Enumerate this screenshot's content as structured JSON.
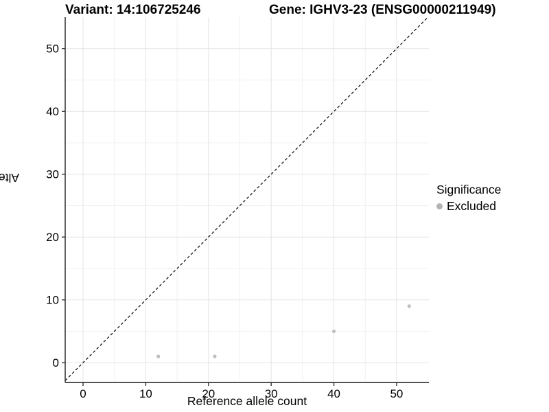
{
  "titles": {
    "variant": "Variant: 14:106725246",
    "gene": "Gene: IGHV3-23 (ENSG00000211949)"
  },
  "legend": {
    "title": "Significance",
    "items": [
      {
        "label": "Excluded",
        "color": "#b3b3b3"
      }
    ]
  },
  "colors": {
    "point": "#bebebe",
    "grid_major": "#e3e3e3",
    "grid_minor": "#f0f0f0",
    "axis_line": "#3a3a3a",
    "tick": "#333333",
    "tick_label": "#000000",
    "identity_line": "#000000"
  },
  "chart_data": {
    "type": "scatter",
    "title_left": "Variant: 14:106725246",
    "title_right": "Gene: IGHV3-23 (ENSG00000211949)",
    "xlabel": "Reference allele count",
    "ylabel": "Alternative allele count",
    "series": [
      {
        "name": "Excluded",
        "points": [
          {
            "x": 12,
            "y": 1
          },
          {
            "x": 21,
            "y": 1
          },
          {
            "x": 40,
            "y": 5
          },
          {
            "x": 52,
            "y": 9
          }
        ]
      }
    ],
    "x_ticks": [
      0,
      10,
      20,
      30,
      40,
      50
    ],
    "y_ticks": [
      0,
      10,
      20,
      30,
      40,
      50
    ],
    "x_minor_ticks": [
      5,
      15,
      25,
      35,
      45
    ],
    "y_minor_ticks": [
      5,
      15,
      25,
      35,
      45
    ],
    "xlim": [
      -2.85,
      55.15
    ],
    "ylim": [
      -3.15,
      55.0
    ],
    "identity_line": "y = x (dashed)",
    "grid": "on",
    "legend_position": "right"
  }
}
